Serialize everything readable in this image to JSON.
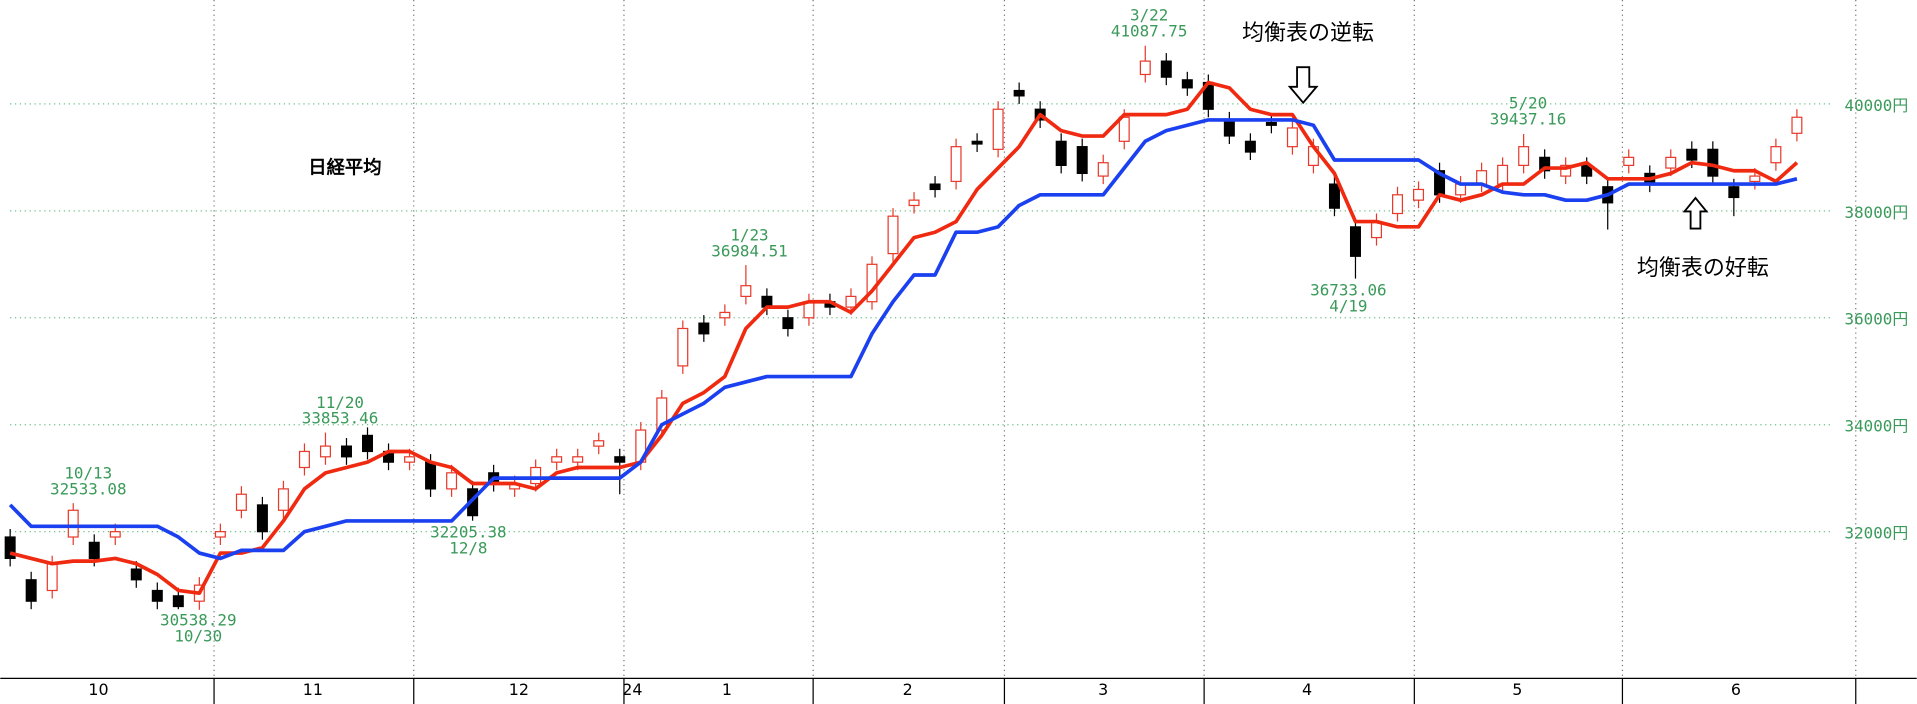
{
  "chart_data": {
    "type": "candlestick",
    "title": "日経平均",
    "x": [
      0,
      1,
      2,
      3,
      4,
      5,
      6,
      7,
      8,
      9,
      10,
      11,
      12,
      13,
      14,
      15,
      16,
      17,
      18,
      19,
      20,
      21,
      22,
      23,
      24,
      25,
      26,
      27,
      28,
      29,
      30,
      31,
      32,
      33,
      34,
      35,
      36,
      37,
      38,
      39,
      40,
      41,
      42,
      43,
      44,
      45,
      46,
      47,
      48,
      49,
      50,
      51,
      52,
      53,
      54,
      55,
      56,
      57,
      58,
      59,
      60,
      61,
      62,
      63,
      64,
      65,
      66,
      67,
      68,
      69,
      70,
      71,
      72,
      73,
      74,
      75,
      76,
      77,
      78,
      79,
      80,
      81,
      82,
      83,
      84,
      85
    ],
    "open": [
      31900,
      31100,
      30900,
      31900,
      31800,
      31900,
      31300,
      30900,
      30800,
      30700,
      31900,
      32400,
      32500,
      32400,
      33200,
      33400,
      33600,
      33800,
      33500,
      33300,
      33300,
      32800,
      32800,
      33100,
      32800,
      32900,
      33300,
      33300,
      33600,
      33400,
      33300,
      33900,
      35100,
      35900,
      36000,
      36400,
      36400,
      36000,
      36000,
      36300,
      36200,
      36300,
      37200,
      38100,
      38500,
      38550,
      39300,
      39150,
      40250,
      39900,
      39300,
      39200,
      38650,
      39300,
      40550,
      40800,
      40450,
      40400,
      39700,
      39300,
      39650,
      39200,
      38850,
      38500,
      37700,
      37500,
      37950,
      38200,
      38750,
      38300,
      38500,
      38500,
      38850,
      39000,
      38650,
      38850,
      38450,
      38850,
      38700,
      38800,
      39150,
      39150,
      38450,
      38550,
      38900,
      39450
    ],
    "high": [
      32050,
      31250,
      31550,
      32533.08,
      31950,
      32150,
      31450,
      31050,
      30950,
      31150,
      32150,
      32850,
      32650,
      32950,
      33650,
      33853.46,
      33750,
      33950,
      33650,
      33550,
      33450,
      33250,
      32950,
      33250,
      33050,
      33350,
      33550,
      33550,
      33850,
      33550,
      34050,
      34650,
      35950,
      36050,
      36250,
      36984.51,
      36550,
      36150,
      36450,
      36450,
      36550,
      37150,
      38050,
      38350,
      38650,
      39350,
      39450,
      40050,
      40400,
      40050,
      39450,
      39350,
      39050,
      39900,
      41087.75,
      40950,
      40600,
      40550,
      39850,
      39450,
      39800,
      39700,
      39350,
      38650,
      37850,
      37950,
      38450,
      38550,
      38900,
      38650,
      38900,
      39000,
      39437.16,
      39150,
      39000,
      39000,
      38600,
      39150,
      38850,
      39150,
      39300,
      39300,
      38600,
      38800,
      39350,
      39900
    ],
    "low": [
      31350,
      30550,
      30750,
      31750,
      31350,
      31750,
      30950,
      30550,
      30550,
      30538.29,
      31750,
      32250,
      31850,
      32250,
      33050,
      33250,
      33250,
      33350,
      33150,
      33150,
      32650,
      32650,
      32205.38,
      32750,
      32650,
      32750,
      33150,
      33150,
      33450,
      32700,
      33150,
      33750,
      34950,
      35550,
      35850,
      36250,
      36050,
      35650,
      35850,
      36050,
      36050,
      36150,
      37050,
      37950,
      38250,
      38400,
      39100,
      39000,
      40000,
      39550,
      38700,
      38550,
      38500,
      39150,
      40400,
      40350,
      40150,
      39750,
      39250,
      38950,
      39450,
      39050,
      38700,
      37900,
      36733.06,
      37350,
      37800,
      38050,
      38150,
      38150,
      38350,
      38350,
      38700,
      38600,
      38500,
      38500,
      37650,
      38700,
      38350,
      38650,
      38800,
      38500,
      37900,
      38400,
      38750,
      39300
    ],
    "close": [
      31500,
      30700,
      31400,
      32400,
      31500,
      32000,
      31100,
      30700,
      30600,
      31000,
      32000,
      32700,
      32000,
      32800,
      33500,
      33600,
      33400,
      33500,
      33300,
      33400,
      32800,
      33100,
      32300,
      32900,
      32900,
      33200,
      33400,
      33400,
      33700,
      33300,
      33900,
      34500,
      35800,
      35700,
      36100,
      36600,
      36200,
      35800,
      36300,
      36200,
      36400,
      37000,
      37900,
      38200,
      38400,
      39200,
      39250,
      39900,
      40150,
      39700,
      38850,
      38700,
      38900,
      39750,
      40800,
      40500,
      40300,
      39900,
      39400,
      39100,
      39600,
      39550,
      39200,
      38050,
      37150,
      37800,
      38300,
      38400,
      38300,
      38500,
      38750,
      38850,
      39200,
      38750,
      38850,
      38650,
      38150,
      39000,
      38500,
      39000,
      38950,
      38650,
      38250,
      38650,
      39200,
      39750
    ],
    "up_color": "#e8392a",
    "down_color": "#000000",
    "lines": [
      {
        "color": "#f02a10",
        "values": [
          31600,
          31500,
          31400,
          31450,
          31450,
          31500,
          31400,
          31200,
          30900,
          30850,
          31600,
          31600,
          31700,
          32200,
          32800,
          33100,
          33200,
          33300,
          33500,
          33500,
          33300,
          33200,
          32900,
          32900,
          32900,
          32800,
          33100,
          33200,
          33200,
          33200,
          33300,
          33800,
          34400,
          34600,
          34900,
          35800,
          36200,
          36200,
          36300,
          36300,
          36100,
          36500,
          37000,
          37500,
          37600,
          37800,
          38400,
          38800,
          39200,
          39800,
          39500,
          39400,
          39400,
          39800,
          39800,
          39800,
          39900,
          40400,
          40300,
          39900,
          39800,
          39800,
          39200,
          38700,
          37800,
          37800,
          37700,
          37700,
          38300,
          38200,
          38300,
          38500,
          38500,
          38800,
          38800,
          38900,
          38600,
          38600,
          38600,
          38700,
          38900,
          38850,
          38750,
          38750,
          38550,
          38900
        ]
      },
      {
        "color": "#1a40f0",
        "values": [
          32500,
          32100,
          32100,
          32100,
          32100,
          32100,
          32100,
          32100,
          31900,
          31600,
          31500,
          31650,
          31650,
          31650,
          32000,
          32100,
          32200,
          32200,
          32200,
          32200,
          32200,
          32200,
          32600,
          33000,
          33000,
          33000,
          33000,
          33000,
          33000,
          33000,
          33300,
          34000,
          34200,
          34400,
          34700,
          34800,
          34900,
          34900,
          34900,
          34900,
          34900,
          35700,
          36300,
          36800,
          36800,
          37600,
          37600,
          37700,
          38100,
          38300,
          38300,
          38300,
          38300,
          38800,
          39300,
          39500,
          39600,
          39700,
          39700,
          39700,
          39700,
          39700,
          39600,
          38950,
          38950,
          38950,
          38950,
          38950,
          38700,
          38500,
          38500,
          38350,
          38300,
          38300,
          38200,
          38200,
          38300,
          38500,
          38500,
          38500,
          38500,
          38500,
          38500,
          38500,
          38500,
          38600
        ]
      }
    ],
    "xlim": [
      -0.47,
      90.7
    ],
    "ylim": [
      29257,
      41943
    ],
    "yticks": [
      {
        "value": 32000,
        "label": "32000円"
      },
      {
        "value": 34000,
        "label": "34000円"
      },
      {
        "value": 36000,
        "label": "36000円"
      },
      {
        "value": 38000,
        "label": "38000円"
      },
      {
        "value": 40000,
        "label": "40000円"
      }
    ],
    "xticks": [
      {
        "value": 4.2,
        "label": "10"
      },
      {
        "value": 14.4,
        "label": "11"
      },
      {
        "value": 24.2,
        "label": "12"
      },
      {
        "value": 29.6,
        "label": "24"
      },
      {
        "value": 34.1,
        "label": "1"
      },
      {
        "value": 42.7,
        "label": "2"
      },
      {
        "value": 52.0,
        "label": "3"
      },
      {
        "value": 61.7,
        "label": "4"
      },
      {
        "value": 71.7,
        "label": "5"
      },
      {
        "value": 82.1,
        "label": "6"
      }
    ],
    "x_separators": [
      9.7,
      19.2,
      29.2,
      38.2,
      47.3,
      56.8,
      66.8,
      76.7,
      87.8
    ],
    "grid": true,
    "annotations": [
      {
        "date": "10/13",
        "value": 32533.08
      },
      {
        "date": "10/30",
        "value": 30538.29
      },
      {
        "date": "11/20",
        "value": 33853.46
      },
      {
        "date": "12/8",
        "value": 32205.38
      },
      {
        "date": "1/23",
        "value": 36984.51
      },
      {
        "date": "3/22",
        "value": 41087.75
      },
      {
        "date": "4/19",
        "value": 36733.06
      },
      {
        "date": "5/20",
        "value": 39437.16
      }
    ],
    "callouts": [
      "均衡表の逆転",
      "均衡表の好転"
    ]
  }
}
